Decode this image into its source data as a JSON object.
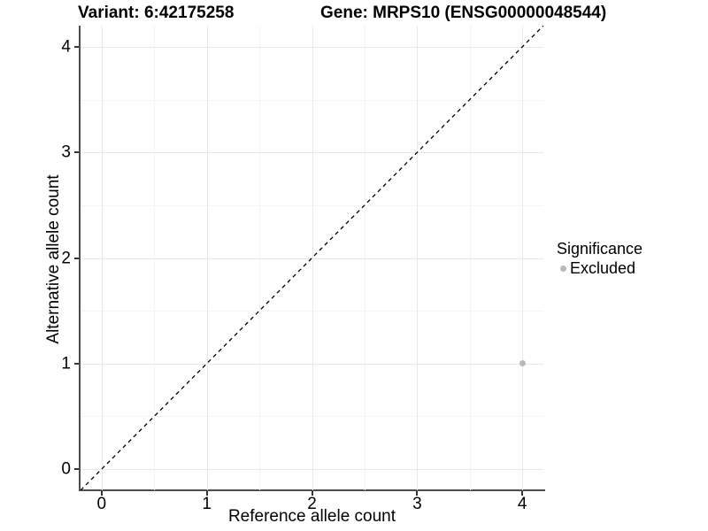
{
  "header": {
    "variant_title": "Variant: 6:42175258",
    "gene_title": "Gene: MRPS10 (ENSG00000048544)"
  },
  "legend": {
    "title": "Significance",
    "items": [
      {
        "label": "Excluded",
        "color": "#b9b9b9"
      }
    ]
  },
  "chart_data": {
    "type": "scatter",
    "title": "Variant: 6:42175258   Gene: MRPS10 (ENSG00000048544)",
    "xlabel": "Reference allele count",
    "ylabel": "Alternative allele count",
    "xlim": [
      -0.2,
      4.2
    ],
    "ylim": [
      -0.2,
      4.2
    ],
    "x_ticks": [
      0,
      1,
      2,
      3,
      4
    ],
    "y_ticks": [
      0,
      1,
      2,
      3,
      4
    ],
    "x_minor_ticks": [
      0.5,
      1.5,
      2.5,
      3.5
    ],
    "y_minor_ticks": [
      0.5,
      1.5,
      2.5,
      3.5
    ],
    "grid": true,
    "legend_position": "right",
    "legend_title": "Significance",
    "series": [
      {
        "name": "Excluded",
        "color": "#b9b9b9",
        "points": [
          {
            "x": 4,
            "y": 1
          }
        ]
      }
    ],
    "reference_line": {
      "kind": "identity",
      "line_style": "dashed",
      "color": "#000000"
    }
  },
  "colors": {
    "background": "#ffffff",
    "grid_major": "#e8e8e8",
    "grid_minor": "#f4f4f4",
    "axis_line": "#4d4d4d",
    "tick_mark": "#333333",
    "text": "#000000",
    "excluded_point": "#b9b9b9"
  }
}
